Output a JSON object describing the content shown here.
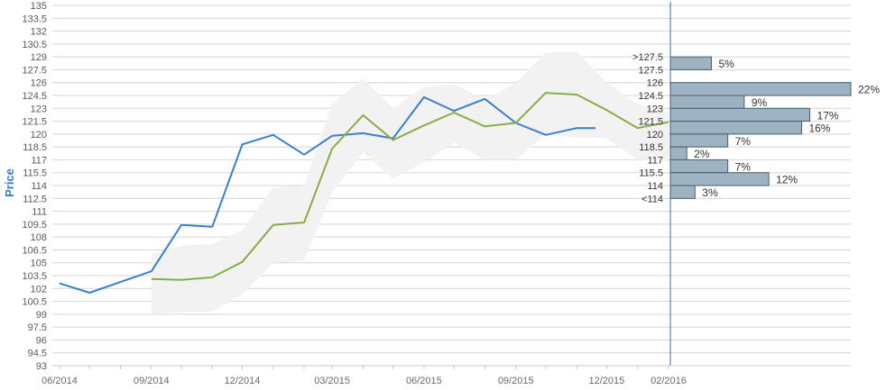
{
  "chart_data": {
    "type": "line",
    "ylabel": "Price",
    "ylim": [
      93,
      135
    ],
    "yticks": [
      "135",
      "133.5",
      "132",
      "130.5",
      "129",
      "127.5",
      "126",
      "124.5",
      "123",
      "121.5",
      "120",
      "118.5",
      "117",
      "115.5",
      "114",
      "112.5",
      "111",
      "109.5",
      "108",
      "106.5",
      "105",
      "103.5",
      "102",
      "100.5",
      "99",
      "97.5",
      "96",
      "94.5",
      "93"
    ],
    "xticks": [
      "06/2014",
      "09/2014",
      "12/2014",
      "03/2015",
      "06/2015",
      "09/2015",
      "12/2015",
      "02/2016"
    ],
    "series": [
      {
        "color": "#3a7fcc",
        "x": [
          "2014-06-01",
          "2014-07-01",
          "2014-09-01",
          "2014-10-01",
          "2014-11-01",
          "2014-12-01",
          "2015-01-01",
          "2015-02-01",
          "2015-03-01",
          "2015-04-01",
          "2015-05-01",
          "2015-06-01",
          "2015-07-01",
          "2015-08-01",
          "2015-09-01",
          "2015-10-01",
          "2015-11-01",
          "2015-11-20"
        ],
        "values": [
          102.6,
          101.5,
          104.0,
          109.4,
          109.2,
          118.8,
          119.9,
          117.6,
          119.8,
          120.1,
          119.5,
          124.3,
          122.7,
          124.1,
          121.3,
          119.9,
          120.7,
          120.7
        ]
      },
      {
        "color": "#8aac46",
        "x": [
          "2014-09-01",
          "2014-10-01",
          "2014-11-01",
          "2014-12-01",
          "2015-01-01",
          "2015-02-01",
          "2015-03-01",
          "2015-04-01",
          "2015-05-01",
          "2015-06-01",
          "2015-07-01",
          "2015-08-01",
          "2015-09-01",
          "2015-10-01",
          "2015-11-01",
          "2015-12-01",
          "2016-01-01",
          "2016-02-01"
        ],
        "values": [
          103.1,
          103.0,
          103.3,
          105.1,
          109.4,
          109.7,
          118.3,
          122.2,
          119.3,
          121.0,
          122.5,
          120.9,
          121.3,
          124.8,
          124.6,
          122.8,
          120.7,
          121.4
        ]
      }
    ],
    "band_color": "#f2f2f2",
    "band": {
      "x": [
        "2014-09-01",
        "2014-10-01",
        "2014-11-01",
        "2014-12-01",
        "2015-01-01",
        "2015-02-01",
        "2015-03-01",
        "2015-04-01",
        "2015-05-01",
        "2015-06-01",
        "2015-07-01",
        "2015-08-01",
        "2015-09-01",
        "2015-10-01",
        "2015-11-01",
        "2015-12-01",
        "2016-01-01",
        "2016-02-01"
      ],
      "upper": [
        106.0,
        107.0,
        107.2,
        108.8,
        113.8,
        114.0,
        123.5,
        126.5,
        123.0,
        125.5,
        125.8,
        124.0,
        126.0,
        129.5,
        129.6,
        126.0,
        123.5,
        122.5
      ],
      "lower": [
        99.0,
        99.3,
        99.3,
        101.3,
        105.0,
        105.2,
        113.2,
        117.8,
        114.8,
        116.7,
        119.0,
        117.0,
        117.0,
        120.0,
        119.6,
        119.5,
        117.0,
        116.8
      ]
    },
    "histogram": {
      "color": "#9db3c2",
      "bins": [
        {
          "label": ">127.5",
          "low": 127.5,
          "high": 129,
          "pct": "5%",
          "value": 5
        },
        {
          "label": "127.5",
          "low": 126,
          "high": 127.5,
          "pct": "",
          "value": 0
        },
        {
          "label": "126",
          "low": 124.5,
          "high": 126,
          "pct": "22%",
          "value": 22
        },
        {
          "label": "124.5",
          "low": 123,
          "high": 124.5,
          "pct": "9%",
          "value": 9
        },
        {
          "label": "123",
          "low": 121.5,
          "high": 123,
          "pct": "17%",
          "value": 17
        },
        {
          "label": "121.5",
          "low": 120,
          "high": 121.5,
          "pct": "16%",
          "value": 16
        },
        {
          "label": "120",
          "low": 118.5,
          "high": 120,
          "pct": "7%",
          "value": 7
        },
        {
          "label": "118.5",
          "low": 117,
          "high": 118.5,
          "pct": "2%",
          "value": 2
        },
        {
          "label": "117",
          "low": 115.5,
          "high": 117,
          "pct": "7%",
          "value": 7
        },
        {
          "label": "115.5",
          "low": 114,
          "high": 115.5,
          "pct": "12%",
          "value": 12
        },
        {
          "label": "114",
          "low": 112.5,
          "high": 114,
          "pct": "3%",
          "value": 3
        },
        {
          "label": "<114",
          "low": 111,
          "high": 112.5,
          "pct": "",
          "value": 0
        }
      ]
    }
  }
}
